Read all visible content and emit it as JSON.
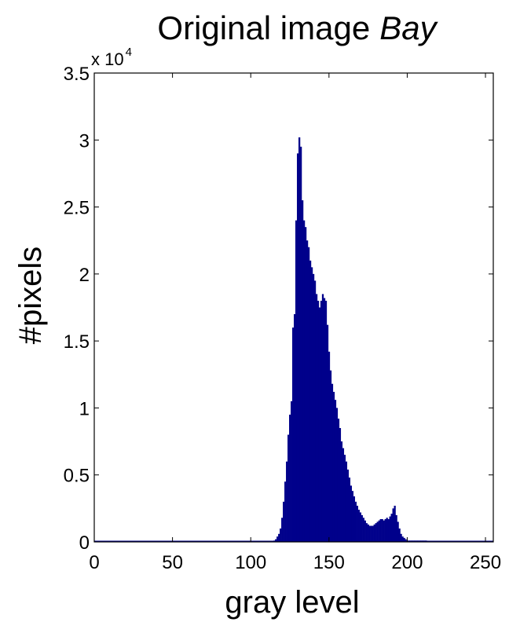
{
  "chart_data": {
    "type": "bar",
    "title": "Original image",
    "title_italic": "Bay",
    "xlabel": "gray level",
    "ylabel": "#pixels",
    "y_multiplier_label": "x 10",
    "y_multiplier_exponent": "4",
    "xlim": [
      0,
      255
    ],
    "ylim": [
      0,
      3.5
    ],
    "x_ticks": [
      0,
      50,
      100,
      150,
      200,
      250
    ],
    "y_ticks": [
      0,
      0.5,
      1,
      1.5,
      2,
      2.5,
      3,
      3.5
    ],
    "y_tick_labels": [
      "0",
      "0.5",
      "1",
      "1.5",
      "2",
      "2.5",
      "3",
      "3.5"
    ],
    "grid": false,
    "bar_color": "#00008b",
    "x": [
      115,
      116,
      117,
      118,
      119,
      120,
      121,
      122,
      123,
      124,
      125,
      126,
      127,
      128,
      129,
      130,
      131,
      132,
      133,
      134,
      135,
      136,
      137,
      138,
      139,
      140,
      141,
      142,
      143,
      144,
      145,
      146,
      147,
      148,
      149,
      150,
      151,
      152,
      153,
      154,
      155,
      156,
      157,
      158,
      159,
      160,
      161,
      162,
      163,
      164,
      165,
      166,
      167,
      168,
      169,
      170,
      171,
      172,
      173,
      174,
      175,
      176,
      177,
      178,
      179,
      180,
      181,
      182,
      183,
      184,
      185,
      186,
      187,
      188,
      189,
      190,
      191,
      192,
      193,
      194,
      195,
      196,
      197,
      198,
      199,
      200,
      201,
      202,
      203,
      204,
      205,
      206,
      207,
      208,
      209,
      210,
      211,
      212
    ],
    "values": [
      0.01,
      0.02,
      0.04,
      0.06,
      0.1,
      0.18,
      0.3,
      0.45,
      0.6,
      0.8,
      0.95,
      1.05,
      1.6,
      1.7,
      2.4,
      2.9,
      3.02,
      2.95,
      2.55,
      2.4,
      2.35,
      2.25,
      2.2,
      2.1,
      2.05,
      2.0,
      1.95,
      1.85,
      1.8,
      1.75,
      1.8,
      1.85,
      1.82,
      1.8,
      1.62,
      1.42,
      1.28,
      1.18,
      1.12,
      1.06,
      1.0,
      0.92,
      0.85,
      0.75,
      0.7,
      0.65,
      0.6,
      0.54,
      0.48,
      0.42,
      0.38,
      0.34,
      0.3,
      0.27,
      0.24,
      0.22,
      0.2,
      0.18,
      0.16,
      0.14,
      0.13,
      0.12,
      0.12,
      0.12,
      0.13,
      0.14,
      0.15,
      0.16,
      0.17,
      0.17,
      0.16,
      0.17,
      0.18,
      0.17,
      0.19,
      0.21,
      0.25,
      0.27,
      0.2,
      0.15,
      0.1,
      0.06,
      0.04,
      0.03,
      0.02,
      0.01,
      0.01,
      0.01,
      0.01,
      0.01,
      0.01,
      0.01,
      0.01,
      0.01,
      0.01,
      0.01,
      0.01,
      0.01
    ]
  }
}
